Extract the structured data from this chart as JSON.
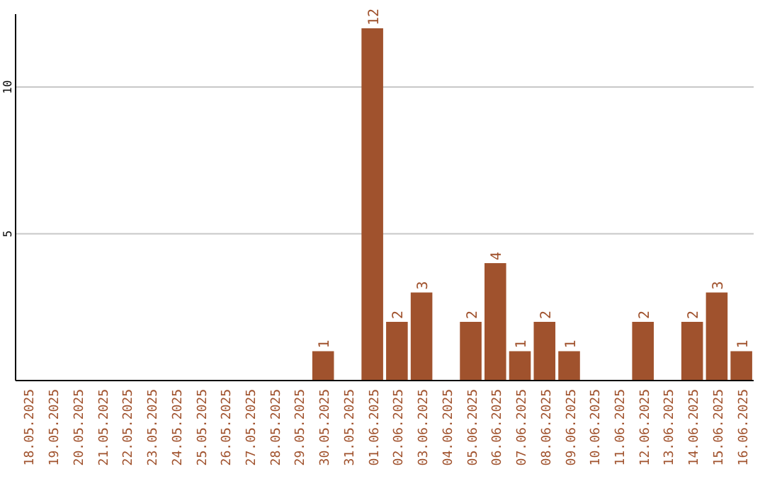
{
  "chart_data": {
    "type": "bar",
    "categories": [
      "18.05.2025",
      "19.05.2025",
      "20.05.2025",
      "21.05.2025",
      "22.05.2025",
      "23.05.2025",
      "24.05.2025",
      "25.05.2025",
      "26.05.2025",
      "27.05.2025",
      "28.05.2025",
      "29.05.2025",
      "30.05.2025",
      "31.05.2025",
      "01.06.2025",
      "02.06.2025",
      "03.06.2025",
      "04.06.2025",
      "05.06.2025",
      "06.06.2025",
      "07.06.2025",
      "08.06.2025",
      "09.06.2025",
      "10.06.2025",
      "11.06.2025",
      "12.06.2025",
      "13.06.2025",
      "14.06.2025",
      "15.06.2025",
      "16.06.2025"
    ],
    "values": [
      0,
      0,
      0,
      0,
      0,
      0,
      0,
      0,
      0,
      0,
      0,
      0,
      1,
      0,
      12,
      2,
      3,
      0,
      2,
      4,
      1,
      2,
      1,
      0,
      0,
      2,
      0,
      2,
      3,
      1
    ],
    "value_labels": [
      null,
      null,
      null,
      null,
      null,
      null,
      null,
      null,
      null,
      null,
      null,
      null,
      "1",
      null,
      "12",
      "2",
      "3",
      null,
      "2",
      "4",
      "1",
      "2",
      "1",
      null,
      null,
      "2",
      null,
      "2",
      "3",
      "1"
    ],
    "color": "#a0522d",
    "ylim": [
      0,
      12
    ],
    "yticks": [
      5,
      10
    ],
    "grid": "y"
  }
}
